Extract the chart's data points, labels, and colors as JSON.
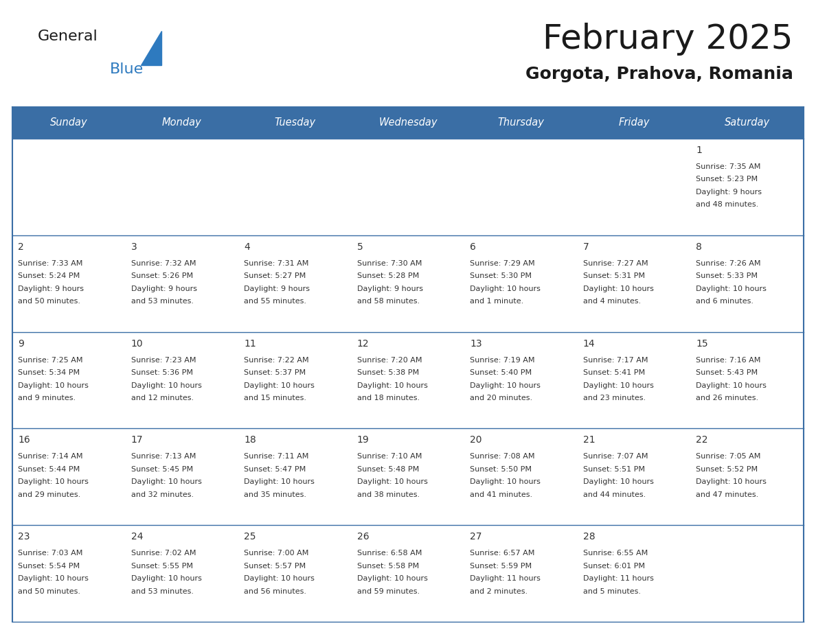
{
  "title": "February 2025",
  "subtitle": "Gorgota, Prahova, Romania",
  "days_of_week": [
    "Sunday",
    "Monday",
    "Tuesday",
    "Wednesday",
    "Thursday",
    "Friday",
    "Saturday"
  ],
  "header_bg": "#3a6ea5",
  "header_text": "#ffffff",
  "cell_bg": "#ffffff",
  "row_sep_color": "#3a6ea5",
  "border_color": "#3a6ea5",
  "text_color": "#333333",
  "title_color": "#1a1a1a",
  "subtitle_color": "#1a1a1a",
  "logo_general_color": "#1a1a1a",
  "logo_blue_color": "#2e7abf",
  "logo_triangle_color": "#2e7abf",
  "calendar": [
    [
      null,
      null,
      null,
      null,
      null,
      null,
      {
        "day": 1,
        "sunrise": "7:35 AM",
        "sunset": "5:23 PM",
        "daylight": "9 hours\nand 48 minutes."
      }
    ],
    [
      {
        "day": 2,
        "sunrise": "7:33 AM",
        "sunset": "5:24 PM",
        "daylight": "9 hours\nand 50 minutes."
      },
      {
        "day": 3,
        "sunrise": "7:32 AM",
        "sunset": "5:26 PM",
        "daylight": "9 hours\nand 53 minutes."
      },
      {
        "day": 4,
        "sunrise": "7:31 AM",
        "sunset": "5:27 PM",
        "daylight": "9 hours\nand 55 minutes."
      },
      {
        "day": 5,
        "sunrise": "7:30 AM",
        "sunset": "5:28 PM",
        "daylight": "9 hours\nand 58 minutes."
      },
      {
        "day": 6,
        "sunrise": "7:29 AM",
        "sunset": "5:30 PM",
        "daylight": "10 hours\nand 1 minute."
      },
      {
        "day": 7,
        "sunrise": "7:27 AM",
        "sunset": "5:31 PM",
        "daylight": "10 hours\nand 4 minutes."
      },
      {
        "day": 8,
        "sunrise": "7:26 AM",
        "sunset": "5:33 PM",
        "daylight": "10 hours\nand 6 minutes."
      }
    ],
    [
      {
        "day": 9,
        "sunrise": "7:25 AM",
        "sunset": "5:34 PM",
        "daylight": "10 hours\nand 9 minutes."
      },
      {
        "day": 10,
        "sunrise": "7:23 AM",
        "sunset": "5:36 PM",
        "daylight": "10 hours\nand 12 minutes."
      },
      {
        "day": 11,
        "sunrise": "7:22 AM",
        "sunset": "5:37 PM",
        "daylight": "10 hours\nand 15 minutes."
      },
      {
        "day": 12,
        "sunrise": "7:20 AM",
        "sunset": "5:38 PM",
        "daylight": "10 hours\nand 18 minutes."
      },
      {
        "day": 13,
        "sunrise": "7:19 AM",
        "sunset": "5:40 PM",
        "daylight": "10 hours\nand 20 minutes."
      },
      {
        "day": 14,
        "sunrise": "7:17 AM",
        "sunset": "5:41 PM",
        "daylight": "10 hours\nand 23 minutes."
      },
      {
        "day": 15,
        "sunrise": "7:16 AM",
        "sunset": "5:43 PM",
        "daylight": "10 hours\nand 26 minutes."
      }
    ],
    [
      {
        "day": 16,
        "sunrise": "7:14 AM",
        "sunset": "5:44 PM",
        "daylight": "10 hours\nand 29 minutes."
      },
      {
        "day": 17,
        "sunrise": "7:13 AM",
        "sunset": "5:45 PM",
        "daylight": "10 hours\nand 32 minutes."
      },
      {
        "day": 18,
        "sunrise": "7:11 AM",
        "sunset": "5:47 PM",
        "daylight": "10 hours\nand 35 minutes."
      },
      {
        "day": 19,
        "sunrise": "7:10 AM",
        "sunset": "5:48 PM",
        "daylight": "10 hours\nand 38 minutes."
      },
      {
        "day": 20,
        "sunrise": "7:08 AM",
        "sunset": "5:50 PM",
        "daylight": "10 hours\nand 41 minutes."
      },
      {
        "day": 21,
        "sunrise": "7:07 AM",
        "sunset": "5:51 PM",
        "daylight": "10 hours\nand 44 minutes."
      },
      {
        "day": 22,
        "sunrise": "7:05 AM",
        "sunset": "5:52 PM",
        "daylight": "10 hours\nand 47 minutes."
      }
    ],
    [
      {
        "day": 23,
        "sunrise": "7:03 AM",
        "sunset": "5:54 PM",
        "daylight": "10 hours\nand 50 minutes."
      },
      {
        "day": 24,
        "sunrise": "7:02 AM",
        "sunset": "5:55 PM",
        "daylight": "10 hours\nand 53 minutes."
      },
      {
        "day": 25,
        "sunrise": "7:00 AM",
        "sunset": "5:57 PM",
        "daylight": "10 hours\nand 56 minutes."
      },
      {
        "day": 26,
        "sunrise": "6:58 AM",
        "sunset": "5:58 PM",
        "daylight": "10 hours\nand 59 minutes."
      },
      {
        "day": 27,
        "sunrise": "6:57 AM",
        "sunset": "5:59 PM",
        "daylight": "11 hours\nand 2 minutes."
      },
      {
        "day": 28,
        "sunrise": "6:55 AM",
        "sunset": "6:01 PM",
        "daylight": "11 hours\nand 5 minutes."
      },
      null
    ]
  ]
}
